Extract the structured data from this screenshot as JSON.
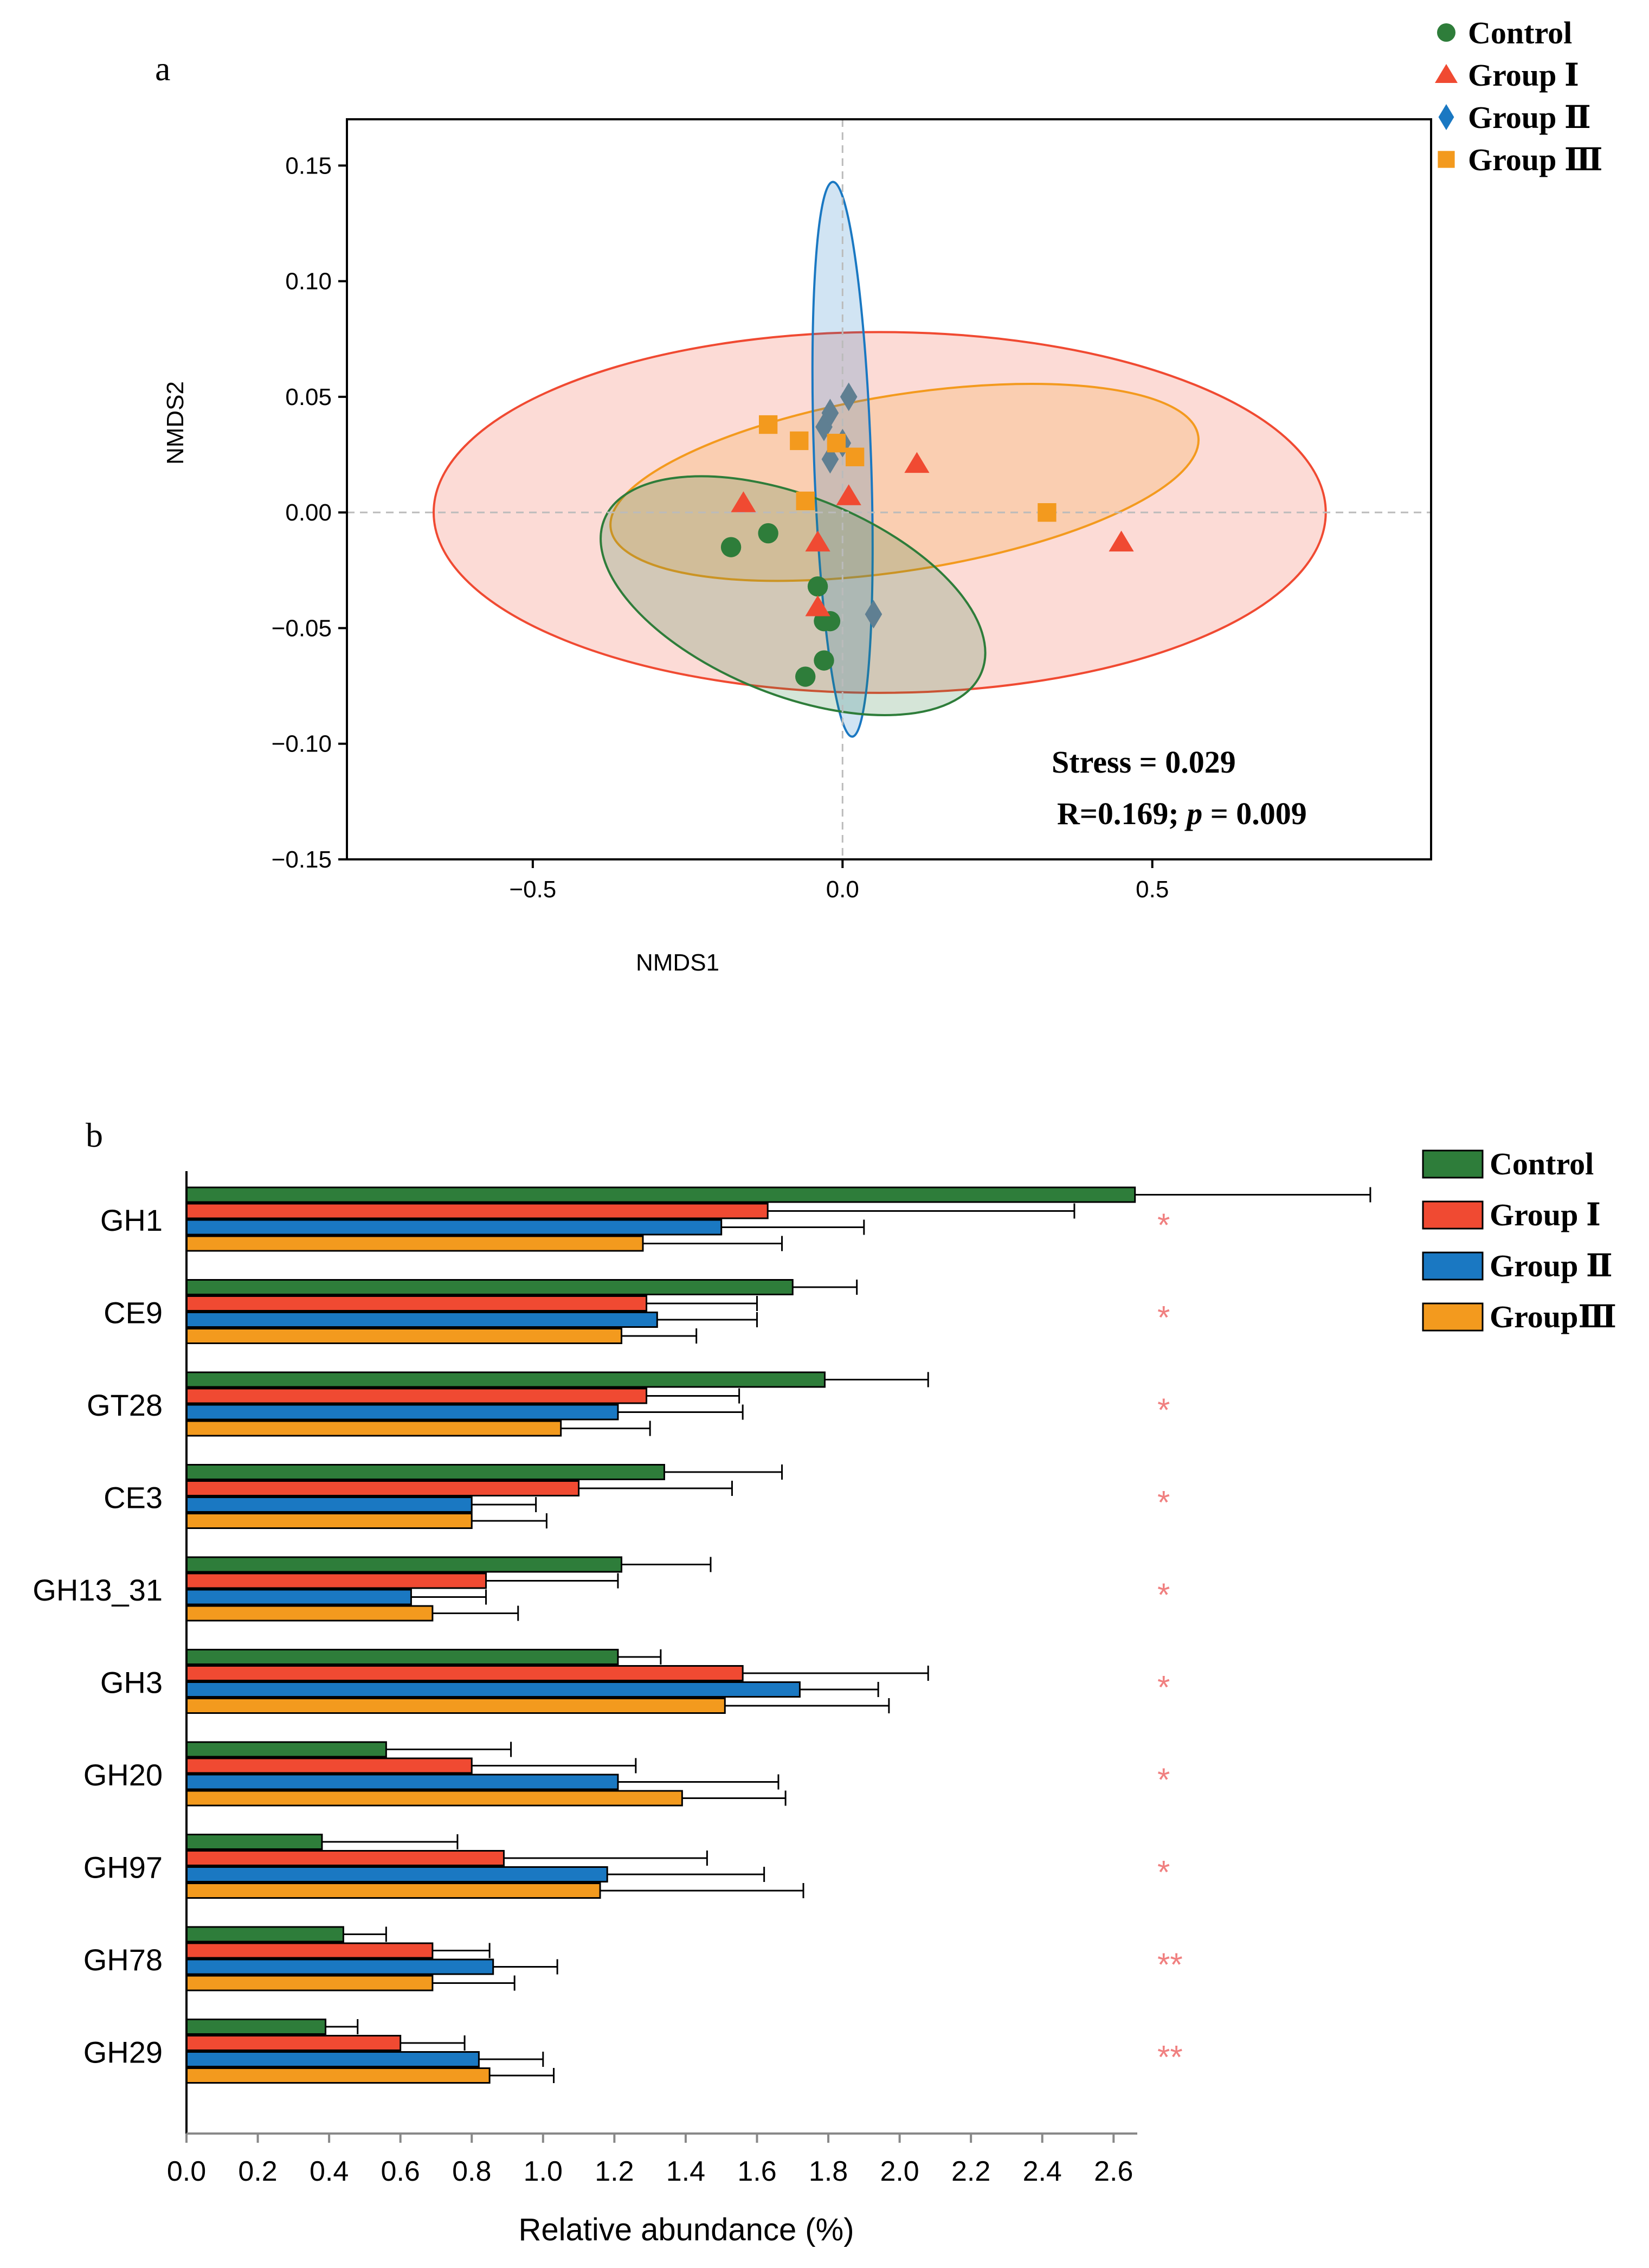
{
  "panels": {
    "a": {
      "label": "a"
    },
    "b": {
      "label": "b"
    }
  },
  "colors": {
    "control": "#2e7d3a",
    "group1": "#f04a32",
    "group2": "#1a78c2",
    "group3": "#f39a1e",
    "diamond_fill": "#5f7f92",
    "star": "#f08080"
  },
  "chart_data": [
    {
      "type": "scatter",
      "panel": "a",
      "xlabel": "NMDS1",
      "ylabel": "NMDS2",
      "xlim": [
        -0.8,
        0.95
      ],
      "ylim": [
        -0.15,
        0.17
      ],
      "xticks": [
        -0.5,
        0.0,
        0.5
      ],
      "xtick_labels": [
        "−0.5",
        "0.0",
        "0.5"
      ],
      "yticks": [
        0.15,
        0.1,
        0.05,
        0.0,
        -0.05,
        -0.1,
        -0.15
      ],
      "ytick_labels": [
        "0.15",
        "0.10",
        "0.05",
        "0.00",
        "−0.05",
        "−0.10",
        "−0.15"
      ],
      "legend": [
        "Control",
        "Group Ⅰ",
        "Group Ⅱ",
        "Group Ⅲ"
      ],
      "annotations": {
        "stress": "Stress = 0.029",
        "stat_prefix": "R=0.169; ",
        "stat_p": "p",
        "stat_suffix": " = 0.009"
      },
      "series": [
        {
          "name": "Control",
          "marker": "circle",
          "color": "#2e7d3a",
          "x": [
            -0.18,
            -0.12,
            -0.04,
            -0.02,
            -0.06,
            -0.03,
            -0.03
          ],
          "y": [
            -0.015,
            -0.009,
            -0.032,
            -0.047,
            -0.071,
            -0.064,
            -0.047
          ]
        },
        {
          "name": "Group Ⅰ",
          "marker": "triangle",
          "color": "#f04a32",
          "x": [
            -0.16,
            -0.04,
            0.01,
            0.12,
            0.45,
            -0.04
          ],
          "y": [
            0.004,
            -0.013,
            0.007,
            0.021,
            -0.013,
            -0.041
          ]
        },
        {
          "name": "Group Ⅱ",
          "marker": "diamond",
          "color": "#1a78c2",
          "x": [
            -0.03,
            -0.02,
            0.0,
            -0.02,
            0.01,
            0.05
          ],
          "y": [
            0.037,
            0.043,
            0.03,
            0.023,
            0.05,
            -0.044
          ]
        },
        {
          "name": "Group Ⅲ",
          "marker": "square",
          "color": "#f39a1e",
          "x": [
            -0.12,
            -0.07,
            -0.01,
            0.02,
            -0.06,
            0.33
          ],
          "y": [
            0.038,
            0.031,
            0.03,
            0.024,
            0.005,
            0.0
          ]
        }
      ],
      "ellipses": [
        {
          "name": "Group Ⅰ",
          "color": "#f04a32",
          "cx": 0.06,
          "cy": 0.0,
          "rx": 0.72,
          "ry": 0.078,
          "angle": 0
        },
        {
          "name": "Group Ⅲ",
          "color": "#f39a1e",
          "cx": 0.1,
          "cy": 0.013,
          "rx": 0.48,
          "ry": 0.038,
          "angle": -9
        },
        {
          "name": "Group Ⅱ",
          "color": "#1a78c2",
          "cx": 0.0,
          "cy": 0.023,
          "rx": 0.046,
          "ry": 0.12,
          "angle": -2
        },
        {
          "name": "Control",
          "color": "#2e7d3a",
          "cx": -0.08,
          "cy": -0.036,
          "rx": 0.16,
          "ry": 0.088,
          "angle": -68
        }
      ]
    },
    {
      "type": "bar",
      "panel": "b",
      "orientation": "horizontal",
      "xlabel": "Relative abundance (%)",
      "xlim": [
        0,
        2.7
      ],
      "xticks": [
        0.0,
        0.2,
        0.4,
        0.6,
        0.8,
        1.0,
        1.2,
        1.4,
        1.6,
        1.8,
        2.0,
        2.2,
        2.4,
        2.6
      ],
      "xtick_labels": [
        "0.0",
        "0.2",
        "0.4",
        "0.6",
        "0.8",
        "1.0",
        "1.2",
        "1.4",
        "1.6",
        "1.8",
        "2.0",
        "2.2",
        "2.4",
        "2.6"
      ],
      "categories": [
        "GH1",
        "CE9",
        "GT28",
        "CE3",
        "GH13_31",
        "GH3",
        "GH20",
        "GH97",
        "GH78",
        "GH29"
      ],
      "significance": [
        "*",
        "*",
        "*",
        "*",
        "*",
        "*",
        "*",
        "*",
        "**",
        "**"
      ],
      "legend": [
        "Control",
        "Group Ⅰ",
        "Group Ⅱ",
        "GroupⅢ"
      ],
      "series": [
        {
          "name": "Control",
          "color": "#2e7d3a",
          "values": [
            2.66,
            1.7,
            1.79,
            1.34,
            1.22,
            1.21,
            0.56,
            0.38,
            0.44,
            0.39
          ],
          "errors": [
            0.66,
            0.18,
            0.29,
            0.33,
            0.25,
            0.12,
            0.35,
            0.38,
            0.12,
            0.09
          ]
        },
        {
          "name": "Group Ⅰ",
          "color": "#f04a32",
          "values": [
            1.63,
            1.29,
            1.29,
            1.1,
            0.84,
            1.56,
            0.8,
            0.89,
            0.69,
            0.6
          ],
          "errors": [
            0.86,
            0.31,
            0.26,
            0.43,
            0.37,
            0.52,
            0.46,
            0.57,
            0.16,
            0.18
          ]
        },
        {
          "name": "Group Ⅱ",
          "color": "#1a78c2",
          "values": [
            1.5,
            1.32,
            1.21,
            0.8,
            0.63,
            1.72,
            1.21,
            1.18,
            0.86,
            0.82
          ],
          "errors": [
            0.4,
            0.28,
            0.35,
            0.18,
            0.21,
            0.22,
            0.45,
            0.44,
            0.18,
            0.18
          ]
        },
        {
          "name": "GroupⅢ",
          "color": "#f39a1e",
          "values": [
            1.28,
            1.22,
            1.05,
            0.8,
            0.69,
            1.51,
            1.39,
            1.16,
            0.69,
            0.85
          ],
          "errors": [
            0.39,
            0.21,
            0.25,
            0.21,
            0.24,
            0.46,
            0.29,
            0.57,
            0.23,
            0.18
          ]
        }
      ]
    }
  ]
}
